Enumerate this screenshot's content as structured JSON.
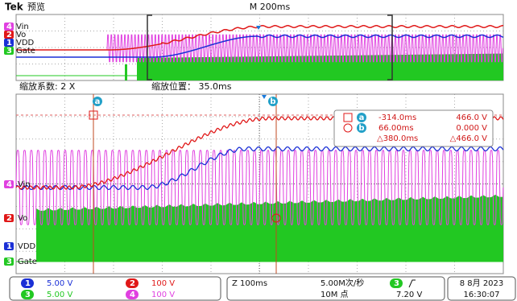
{
  "header": {
    "brand": "Tek",
    "mode": "预览",
    "timebase": "M 200ms"
  },
  "overview": {
    "channels": [
      {
        "number": "4",
        "label": "Vin"
      },
      {
        "number": "2",
        "label": "Vo"
      },
      {
        "number": "1",
        "label": "VDD"
      },
      {
        "number": "3",
        "label": "Gate"
      }
    ]
  },
  "zoom": {
    "factor": "缩放系数: 2 X",
    "position": "缩放位置： 35.0ms",
    "cursors": [
      "a",
      "b"
    ],
    "channels": [
      {
        "number": "4",
        "label": "Vin"
      },
      {
        "number": "2",
        "label": "Vo"
      },
      {
        "number": "1",
        "label": "VDD"
      },
      {
        "number": "3",
        "label": "Gate"
      }
    ]
  },
  "readout": {
    "rows": [
      [
        "a",
        "-314.0ms",
        "466.0 V"
      ],
      [
        "b",
        "66.00ms",
        "0.000 V"
      ]
    ],
    "delta": [
      "△380.0ms",
      "△466.0 V"
    ]
  },
  "status": {
    "channels": [
      {
        "number": "1",
        "scale": "5.00 V"
      },
      {
        "number": "2",
        "scale": "100 V"
      },
      {
        "number": "3",
        "scale": "5.00 V"
      },
      {
        "number": "4",
        "scale": "100 V"
      }
    ],
    "zoom_time": "Z 100ms",
    "sample_rate": "5.00M次/秒",
    "record_length": "10M 点",
    "trigger_number": "3",
    "trigger_level": "7.20 V",
    "date": "8 8月 2023",
    "time": "16:30:07"
  }
}
